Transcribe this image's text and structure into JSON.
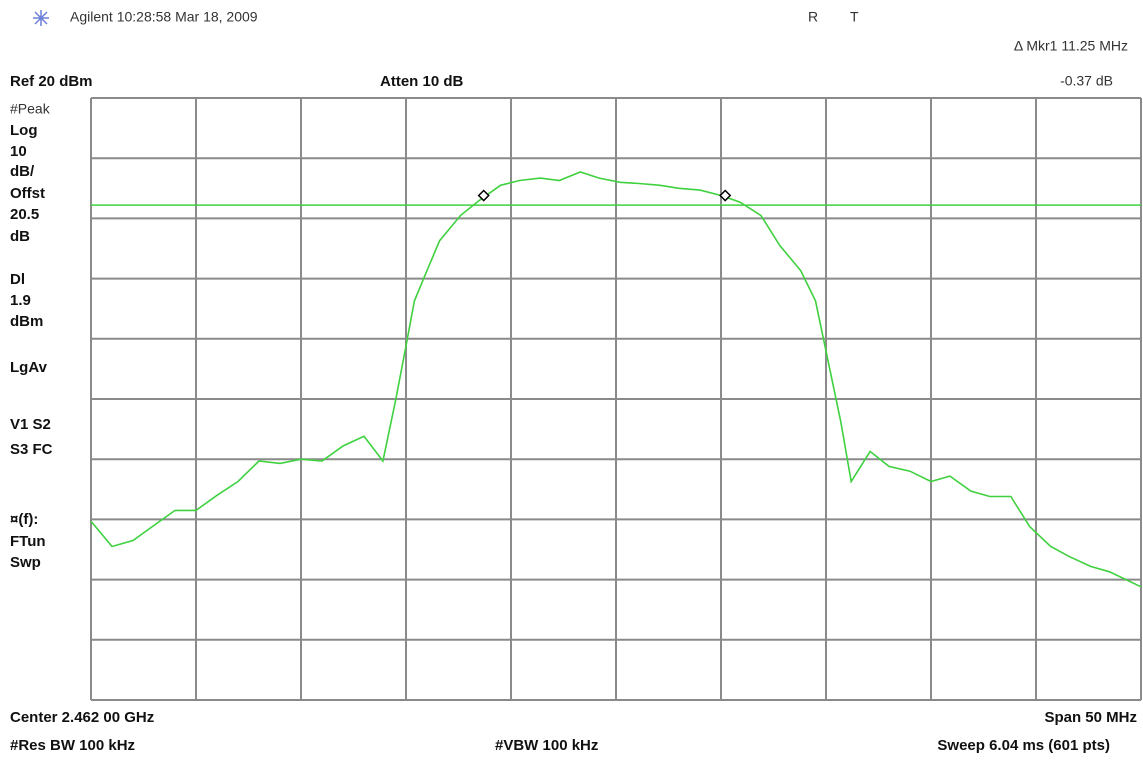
{
  "screen": {
    "header": "Agilent 10:28:58  Mar 18, 2009",
    "r": "R",
    "t": "T",
    "marker_delta": "Δ Mkr1  11.25 MHz",
    "marker_level": "-0.37 dB",
    "ref": "Ref 20 dBm",
    "atten": "Atten 10 dB",
    "side": [
      "#Peak",
      "Log",
      "10",
      "dB/",
      "Offst",
      "20.5",
      "dB",
      "Dl",
      "1.9",
      "dBm",
      "LgAv",
      "V1   S2",
      "S3   FC",
      "¤(f):",
      "FTun",
      "Swp"
    ],
    "center": "Center 2.462 00 GHz",
    "span": "Span 50 MHz",
    "rbw": "#Res BW 100 kHz",
    "vbw": "#VBW 100 kHz",
    "sweep": "Sweep 6.04 ms (601 pts)"
  },
  "chart_data": {
    "type": "line",
    "color": "#3fd13f",
    "xlim": [
      2437,
      2487
    ],
    "ylim": [
      -80,
      20
    ],
    "x": [
      2437.0,
      2438.0,
      2439.0,
      2440.0,
      2441.0,
      2442.0,
      2443.0,
      2444.0,
      2445.0,
      2446.0,
      2447.0,
      2448.0,
      2449.0,
      2450.0,
      2450.9,
      2451.5,
      2452.0,
      2452.4,
      2452.9,
      2453.6,
      2454.6,
      2455.5,
      2456.5,
      2457.4,
      2458.4,
      2459.3,
      2460.3,
      2461.2,
      2462.2,
      2463.1,
      2464.1,
      2465.0,
      2466.0,
      2467.0,
      2467.9,
      2468.9,
      2469.8,
      2470.8,
      2471.5,
      2472.1,
      2472.7,
      2473.2,
      2474.1,
      2475.0,
      2476.0,
      2477.0,
      2477.9,
      2478.9,
      2479.8,
      2480.8,
      2481.7,
      2482.7,
      2483.6,
      2484.6,
      2485.5,
      2487.0
    ],
    "values": [
      -50.3,
      -54.5,
      -53.5,
      -51,
      -48.5,
      -48.5,
      -46,
      -43.7,
      -40.3,
      -40.7,
      -40,
      -40.3,
      -37.8,
      -36.2,
      -40.3,
      -30.3,
      -21.2,
      -13.7,
      -9.5,
      -3.7,
      0.5,
      3,
      5.5,
      6.3,
      6.7,
      6.3,
      7.7,
      6.7,
      6,
      5.8,
      5.5,
      5,
      4.7,
      3.8,
      2.7,
      0.5,
      -4.5,
      -8.7,
      -13.7,
      -23.7,
      -33.7,
      -43.7,
      -38.7,
      -41.2,
      -42,
      -43.7,
      -42.8,
      -45.3,
      -46.2,
      -46.2,
      -51.2,
      -54.5,
      -56.2,
      -57.8,
      -58.7,
      -61.2
    ],
    "display_line": 2.2,
    "display_line_color": "#3fd13f",
    "markers": [
      {
        "x": 2455.7,
        "y": 3.8
      },
      {
        "x": 2467.2,
        "y": 3.8
      }
    ]
  }
}
